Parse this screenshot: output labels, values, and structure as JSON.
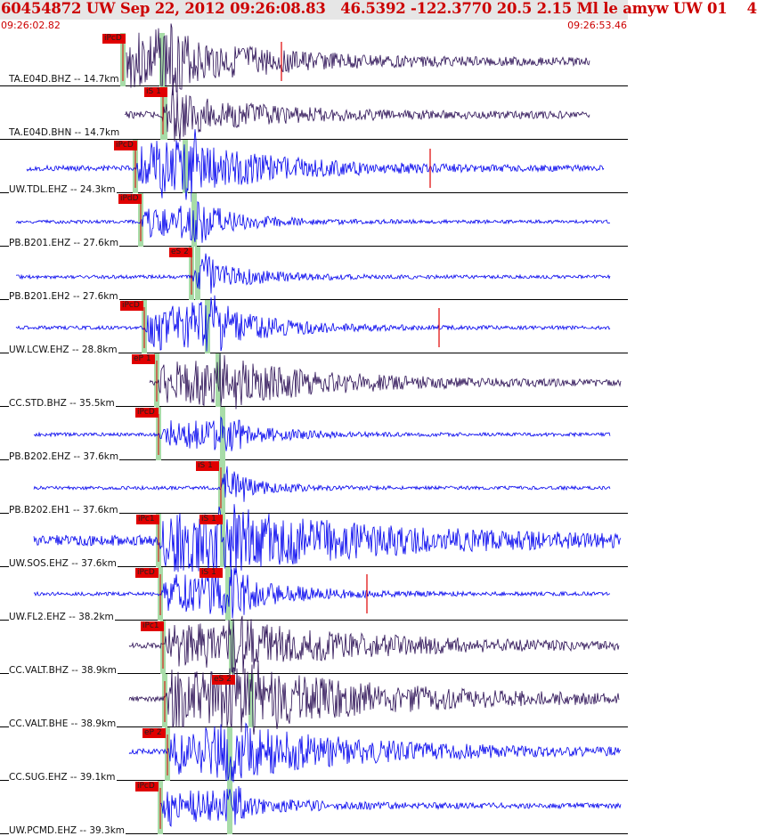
{
  "header": {
    "title": "60454872 UW Sep 22, 2012 09:26:08.83   46.5392 -122.3770 20.5 2.15 Ml le amyw UW 01    4",
    "start_time": "09:26:02.82",
    "end_time": "09:26:53.46"
  },
  "colors": {
    "background": "#ffffff",
    "title_bar": "#e6e6e6",
    "title_text": "#cc0000",
    "trace_bh": "#2b0f55",
    "trace_eh": "#0000ee",
    "pick": "#e00000",
    "phase_marker": "#a8dca8"
  },
  "traces": [
    {
      "label": "TA.E04D.BHZ -- 14.7km",
      "channel_type": "BH",
      "pick_label": "iPcD",
      "picks": [
        "iPcD"
      ]
    },
    {
      "label": "TA.E04D.BHN -- 14.7km",
      "channel_type": "BH",
      "pick_label": "iS 1",
      "picks": [
        "iS 1"
      ]
    },
    {
      "label": "UW.TDL.EHZ -- 24.3km",
      "channel_type": "EH",
      "pick_label": "iPcD",
      "picks": [
        "iPcD"
      ]
    },
    {
      "label": "PB.B201.EHZ -- 27.6km",
      "channel_type": "EH",
      "pick_label": "iPdD",
      "picks": [
        "iPdD"
      ]
    },
    {
      "label": "PB.B201.EH2 -- 27.6km",
      "channel_type": "EH",
      "pick_label": "eS 2",
      "picks": [
        "eS 2"
      ]
    },
    {
      "label": "UW.LCW.EHZ -- 28.8km",
      "channel_type": "EH",
      "pick_label": "iPcD",
      "picks": [
        "iPcD"
      ]
    },
    {
      "label": "CC.STD.BHZ -- 35.5km",
      "channel_type": "BH",
      "pick_label": "eP 1",
      "picks": [
        "eP 1"
      ]
    },
    {
      "label": "PB.B202.EHZ -- 37.6km",
      "channel_type": "EH",
      "pick_label": "iPcD",
      "picks": [
        "iPcD"
      ]
    },
    {
      "label": "PB.B202.EH1 -- 37.6km",
      "channel_type": "EH",
      "pick_label": "iS 1",
      "picks": [
        "iS 1"
      ]
    },
    {
      "label": "UW.SOS.EHZ -- 37.6km",
      "channel_type": "EH",
      "pick_label": "iPc1",
      "picks": [
        "iPc1",
        "iS 1"
      ]
    },
    {
      "label": "UW.FL2.EHZ -- 38.2km",
      "channel_type": "EH",
      "pick_label": "iPcD",
      "picks": [
        "iPcD",
        "iS 1"
      ]
    },
    {
      "label": "CC.VALT.BHZ -- 38.9km",
      "channel_type": "BH",
      "pick_label": "iPc1",
      "picks": [
        "iPc1"
      ]
    },
    {
      "label": "CC.VALT.BHE -- 38.9km",
      "channel_type": "BH",
      "pick_label": "eS 2",
      "picks": [
        "eS 2"
      ]
    },
    {
      "label": "CC.SUG.EHZ -- 39.1km",
      "channel_type": "EH",
      "pick_label": "eP 2",
      "picks": [
        "eP 2"
      ]
    },
    {
      "label": "UW.PCMD.EHZ -- 39.3km",
      "channel_type": "EH",
      "pick_label": "iPcD",
      "picks": [
        "iPcD"
      ]
    }
  ]
}
